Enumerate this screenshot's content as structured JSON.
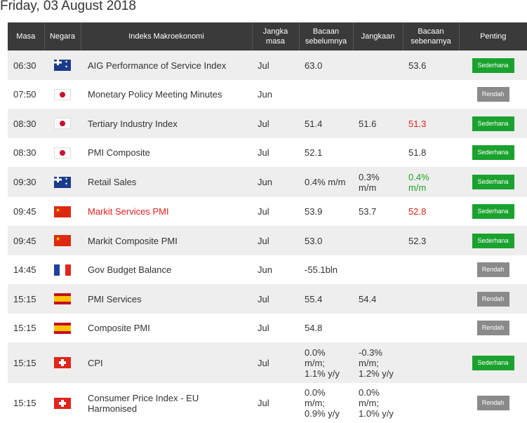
{
  "date_title": "Friday, 03 August 2018",
  "headers": {
    "time": "Masa",
    "country": "Negara",
    "indicator": "Indeks Makroekonomi",
    "period": "Jangka masa",
    "previous": "Bacaan sebelumnya",
    "forecast": "Jangkaan",
    "actual": "Bacaan sebenarnya",
    "importance": "Penting"
  },
  "colors": {
    "positive": "#1ea323",
    "negative": "#e0201b",
    "badge_moderate": "#1aa22e",
    "badge_low": "#8a8a8a",
    "header_bg": "#3a3a3a"
  },
  "rows": [
    {
      "time": "06:30",
      "flag": "australia-flag-icon",
      "indicator": "AIG Performance of Service Index",
      "period": "Jul",
      "previous": "63.0",
      "forecast": "",
      "actual": "53.6",
      "importance": "Sederhana"
    },
    {
      "time": "07:50",
      "flag": "japan-flag-icon",
      "indicator": "Monetary Policy Meeting Minutes",
      "period": "Jun",
      "previous": "",
      "forecast": "",
      "actual": "",
      "importance": "Rendah"
    },
    {
      "time": "08:30",
      "flag": "japan-flag-icon",
      "indicator": "Tertiary Industry Index",
      "period": "Jul",
      "previous": "51.4",
      "forecast": "51.6",
      "actual": "51.3",
      "importance": "Sederhana"
    },
    {
      "time": "08:30",
      "flag": "japan-flag-icon",
      "indicator": "PMI Composite",
      "period": "Jul",
      "previous": "52.1",
      "forecast": "",
      "actual": "51.8",
      "importance": "Sederhana"
    },
    {
      "time": "09:30",
      "flag": "australia-flag-icon",
      "indicator": "Retail Sales",
      "period": "Jun",
      "previous": "0.4% m/m",
      "forecast": "0.3% m/m",
      "actual": "0.4% m/m",
      "importance": "Sederhana"
    },
    {
      "time": "09:45",
      "flag": "china-flag-icon",
      "indicator": "Markit Services PMI",
      "period": "Jul",
      "previous": "53.9",
      "forecast": "53.7",
      "actual": "52.8",
      "importance": "Sederhana"
    },
    {
      "time": "09:45",
      "flag": "china-flag-icon",
      "indicator": "Markit Composite PMI",
      "period": "Jul",
      "previous": "53.0",
      "forecast": "",
      "actual": "52.3",
      "importance": "Sederhana"
    },
    {
      "time": "14:45",
      "flag": "france-flag-icon",
      "indicator": "Gov Budget Balance",
      "period": "Jun",
      "previous": "-55.1bln",
      "forecast": "",
      "actual": "",
      "importance": "Rendah"
    },
    {
      "time": "15:15",
      "flag": "spain-flag-icon",
      "indicator": "PMI Services",
      "period": "Jul",
      "previous": "55.4",
      "forecast": "54.4",
      "actual": "",
      "importance": "Rendah"
    },
    {
      "time": "15:15",
      "flag": "spain-flag-icon",
      "indicator": "Composite PMI",
      "period": "Jul",
      "previous": "54.8",
      "forecast": "",
      "actual": "",
      "importance": "Rendah"
    },
    {
      "time": "15:15",
      "flag": "switzerland-flag-icon",
      "indicator": "CPI",
      "period": "Jul",
      "previous": "0.0% m/m; 1.1% y/y",
      "forecast": "-0.3% m/m; 1.2% y/y",
      "actual": "",
      "importance": "Sederhana"
    },
    {
      "time": "15:15",
      "flag": "switzerland-flag-icon",
      "indicator": "Consumer Price Index - EU Harmonised",
      "period": "Jul",
      "previous": "0.0% m/m; 0.9% y/y",
      "forecast": "0.0% m/m; 1.0% y/y",
      "actual": "",
      "importance": "Rendah"
    }
  ]
}
